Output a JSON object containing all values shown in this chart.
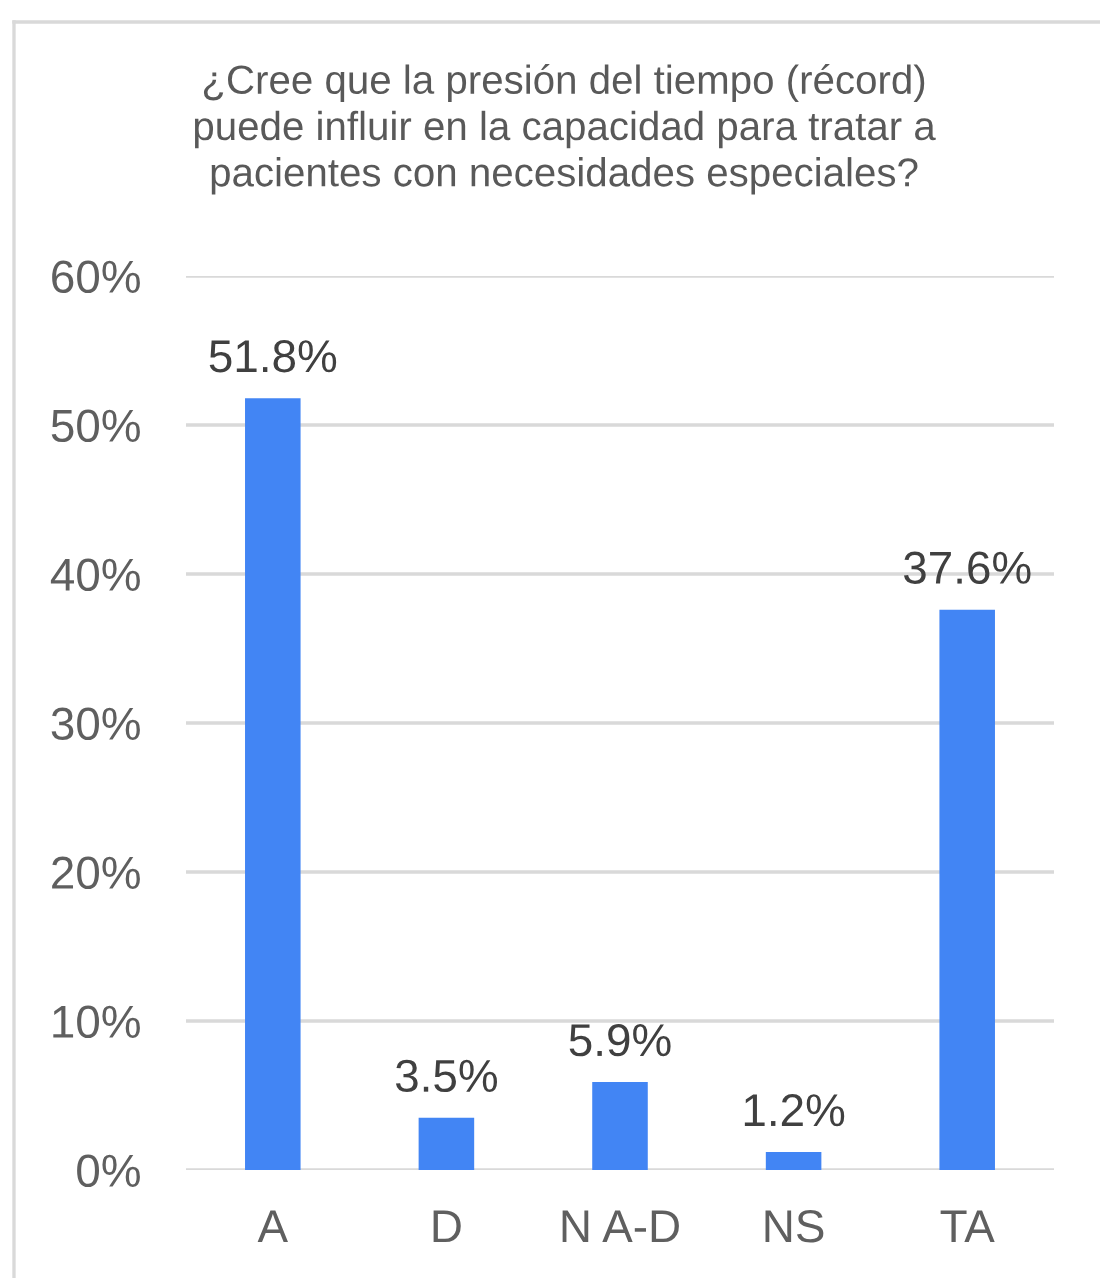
{
  "chart_data": {
    "type": "bar",
    "title": "¿Cree que la presión del tiempo (récord) puede influir en la capacidad para tratar a pacientes con necesidades especiales?",
    "categories": [
      "A",
      "D",
      "N A-D",
      "NS",
      "TA"
    ],
    "values": [
      51.8,
      3.5,
      5.9,
      1.2,
      37.6
    ],
    "value_labels": [
      "51.8%",
      "3.5%",
      "5.9%",
      "1.2%",
      "37.6%"
    ],
    "color": "#4285f4",
    "ylim": [
      0,
      60
    ],
    "yticks": [
      {
        "value": 0,
        "label": "0%"
      },
      {
        "value": 10,
        "label": "10%"
      },
      {
        "value": 20,
        "label": "20%"
      },
      {
        "value": 30,
        "label": "30%"
      },
      {
        "value": 40,
        "label": "40%"
      },
      {
        "value": 50,
        "label": "50%"
      },
      {
        "value": 60,
        "label": "60%"
      }
    ],
    "grid": "y"
  }
}
